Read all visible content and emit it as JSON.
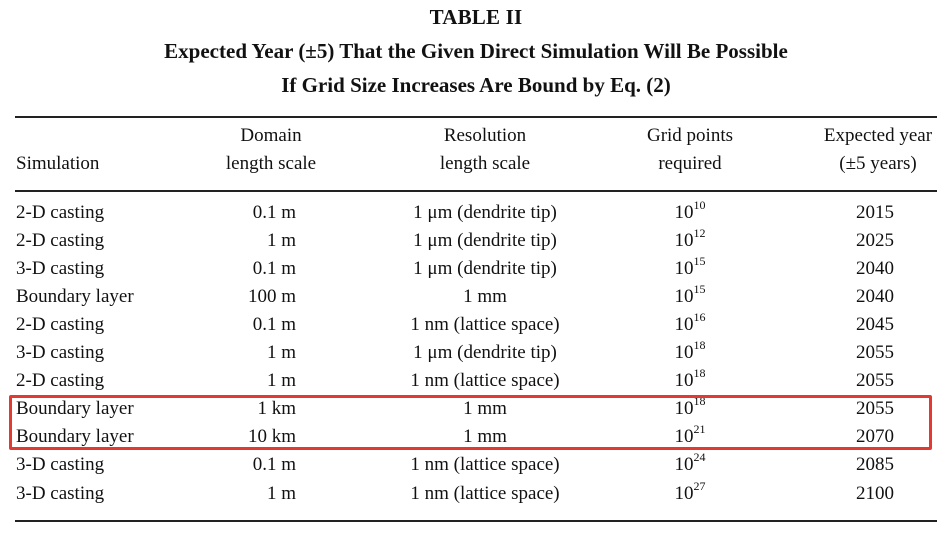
{
  "table": {
    "title": "TABLE II",
    "caption_line1": "Expected Year (±5) That the Given Direct Simulation Will Be Possible",
    "caption_line2": "If Grid Size Increases Are Bound by Eq. (2)",
    "headers": {
      "simulation": "Simulation",
      "domain_line1": "Domain",
      "domain_line2": "length scale",
      "resolution_line1": "Resolution",
      "resolution_line2": "length scale",
      "grid_line1": "Grid points",
      "grid_line2": "required",
      "year_line1": "Expected year",
      "year_line2": "(±5 years)"
    },
    "rows": [
      {
        "simulation": "2-D casting",
        "domain": "0.1 m",
        "resolution": "1 μm (dendrite tip)",
        "grid_base": "10",
        "grid_exp": "10",
        "year": "2015"
      },
      {
        "simulation": "2-D casting",
        "domain": "1 m",
        "resolution": "1 μm (dendrite tip)",
        "grid_base": "10",
        "grid_exp": "12",
        "year": "2025"
      },
      {
        "simulation": "3-D casting",
        "domain": "0.1 m",
        "resolution": "1 μm (dendrite tip)",
        "grid_base": "10",
        "grid_exp": "15",
        "year": "2040"
      },
      {
        "simulation": "Boundary layer",
        "domain": "100 m",
        "resolution": "1 mm",
        "grid_base": "10",
        "grid_exp": "15",
        "year": "2040"
      },
      {
        "simulation": "2-D casting",
        "domain": "0.1 m",
        "resolution": "1 nm (lattice space)",
        "grid_base": "10",
        "grid_exp": "16",
        "year": "2045"
      },
      {
        "simulation": "3-D casting",
        "domain": "1 m",
        "resolution": "1 μm (dendrite tip)",
        "grid_base": "10",
        "grid_exp": "18",
        "year": "2055"
      },
      {
        "simulation": "2-D casting",
        "domain": "1 m",
        "resolution": "1 nm (lattice space)",
        "grid_base": "10",
        "grid_exp": "18",
        "year": "2055"
      },
      {
        "simulation": "Boundary layer",
        "domain": "1 km",
        "resolution": "1 mm",
        "grid_base": "10",
        "grid_exp": "18",
        "year": "2055"
      },
      {
        "simulation": "Boundary layer",
        "domain": "10 km",
        "resolution": "1 mm",
        "grid_base": "10",
        "grid_exp": "21",
        "year": "2070"
      },
      {
        "simulation": "3-D casting",
        "domain": "0.1 m",
        "resolution": "1 nm (lattice space)",
        "grid_base": "10",
        "grid_exp": "24",
        "year": "2085"
      },
      {
        "simulation": "3-D casting",
        "domain": "1 m",
        "resolution": "1 nm (lattice space)",
        "grid_base": "10",
        "grid_exp": "27",
        "year": "2100"
      }
    ],
    "highlight_color": "#e03a32"
  }
}
